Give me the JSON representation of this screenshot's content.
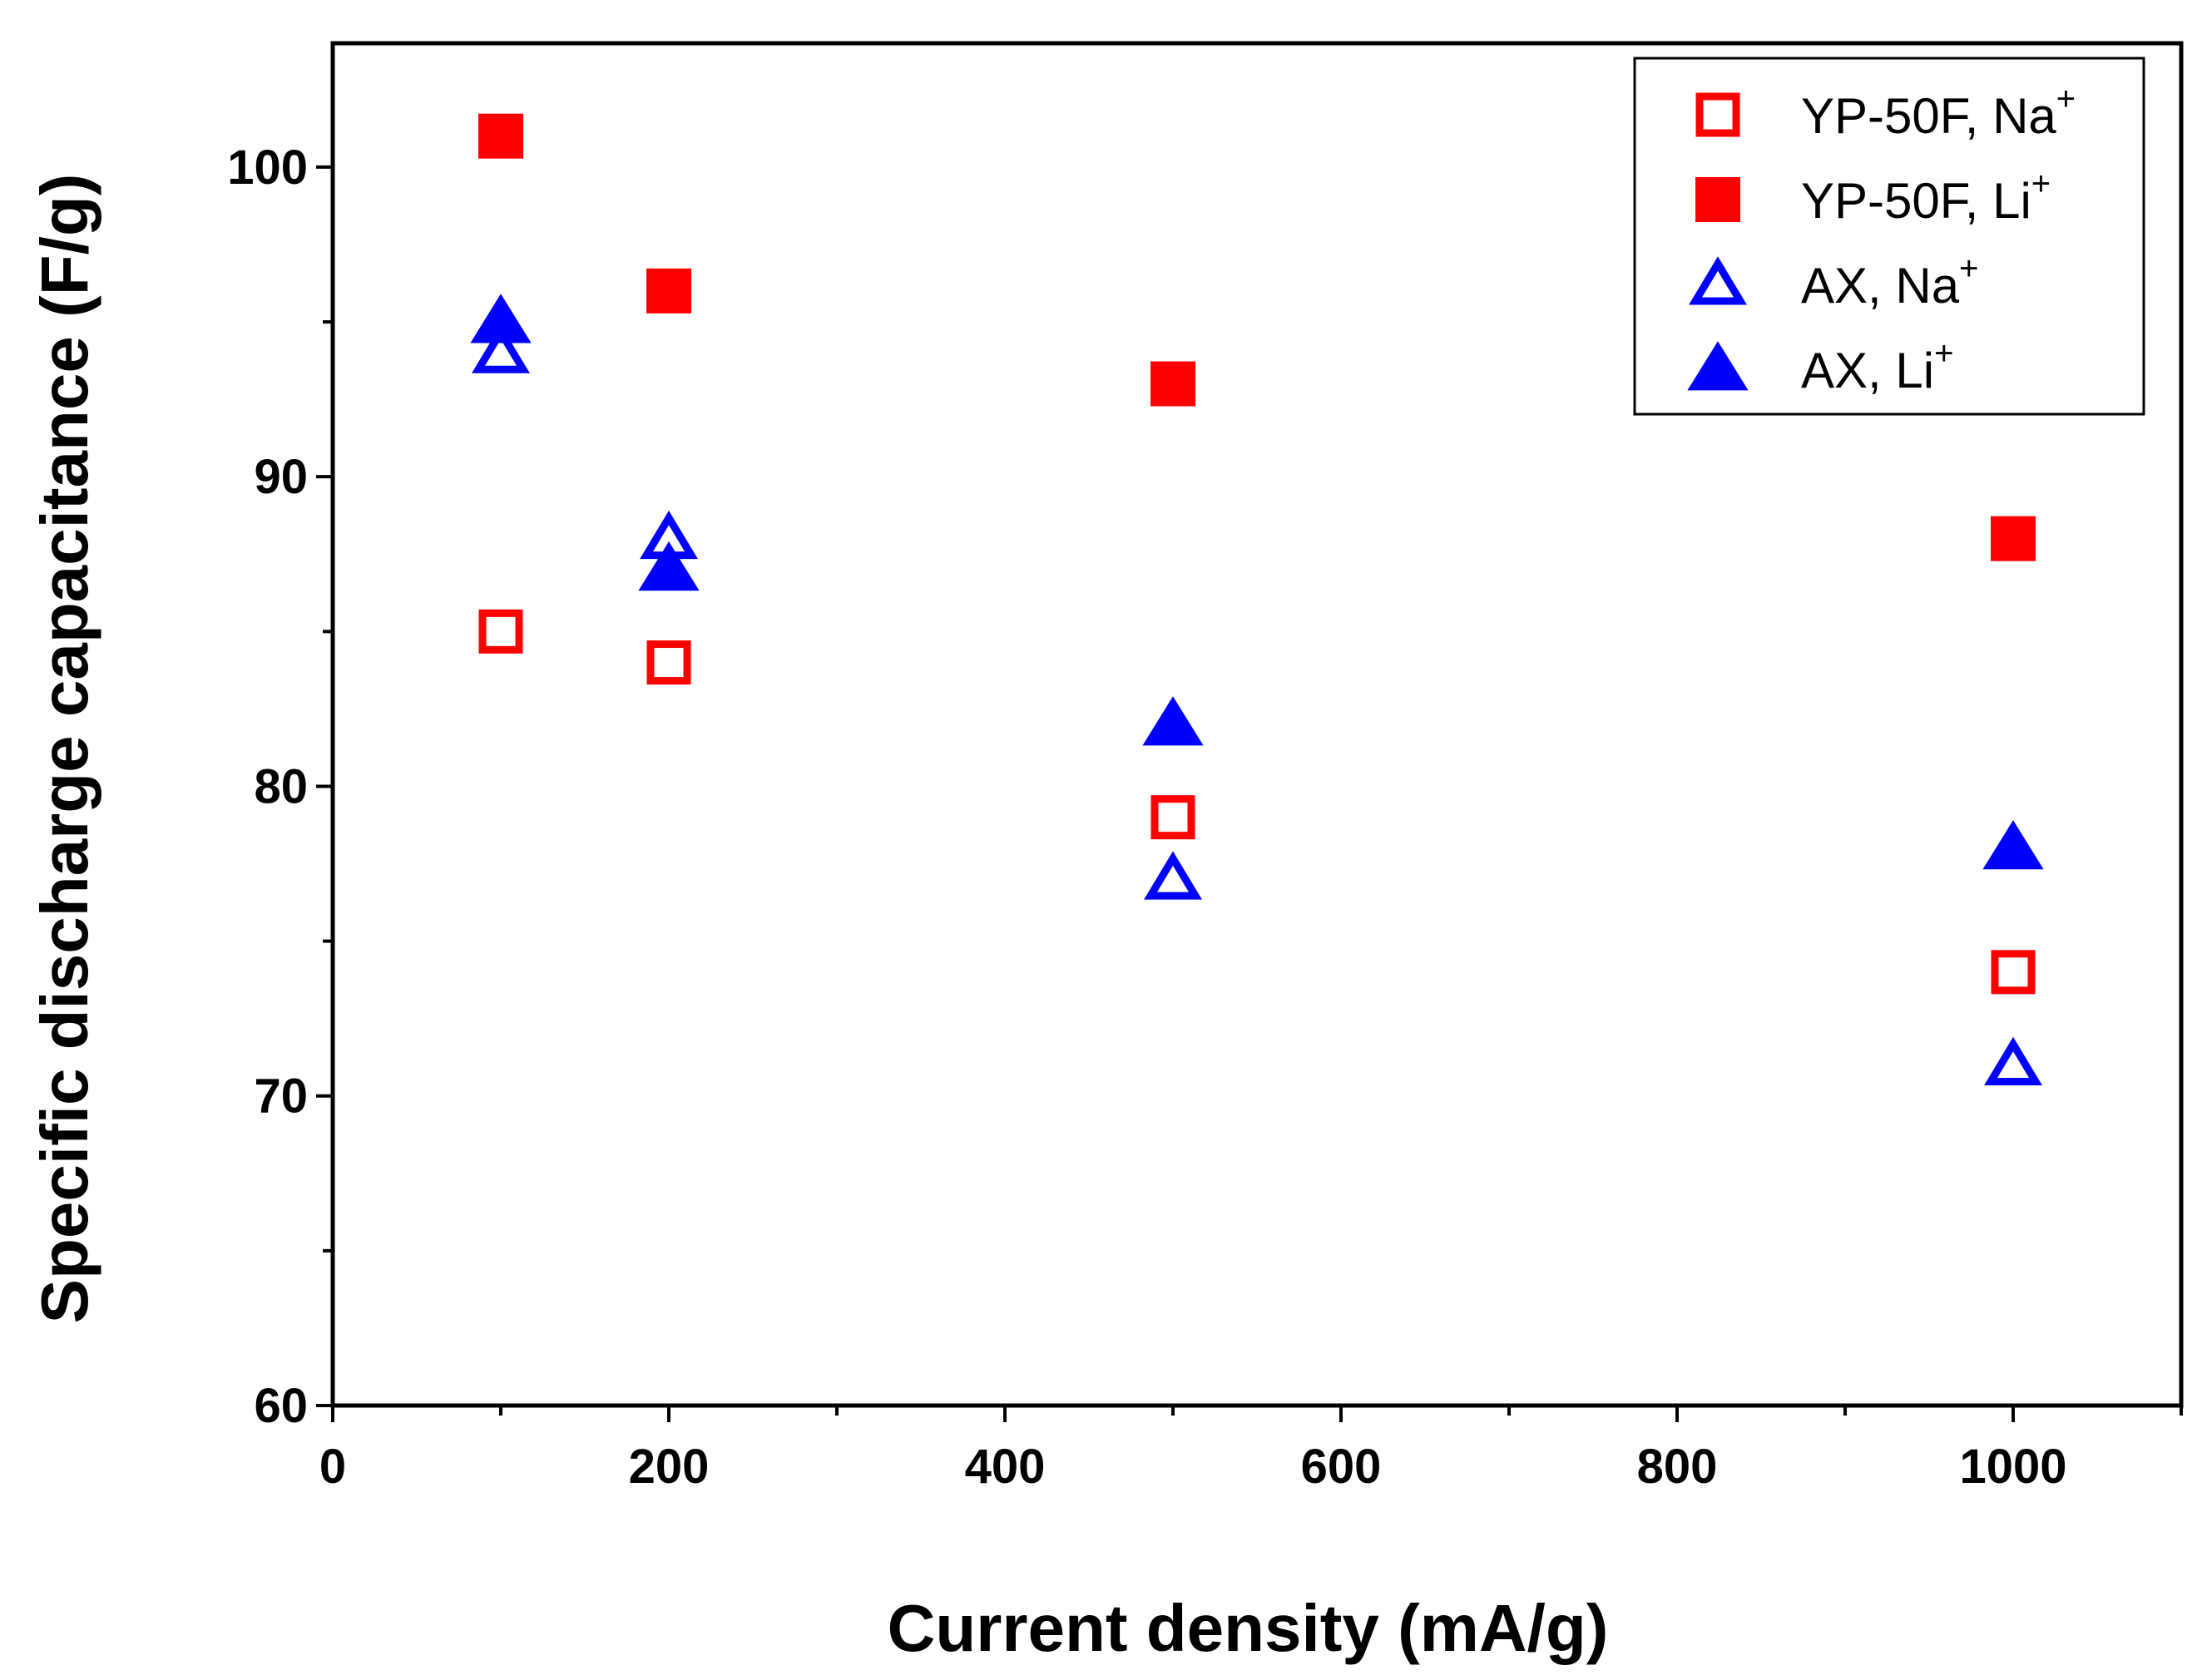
{
  "chart_data": {
    "type": "scatter",
    "title": "",
    "xlabel": "Current density (mA/g)",
    "ylabel": "Specific discharge capacitance (F/g)",
    "xlim": [
      0,
      1100
    ],
    "ylim": [
      60,
      104
    ],
    "xticks": [
      0,
      200,
      400,
      600,
      800,
      1000
    ],
    "yticks": [
      60,
      70,
      80,
      90,
      100
    ],
    "x_minor_step": 100,
    "y_minor_step": 5,
    "legend_position": "top-right",
    "series": [
      {
        "name": "YP-50F, Na",
        "name_base": "YP-50F, Na",
        "name_sup": "+",
        "marker": "square-open",
        "color": "#ff0000",
        "points": [
          [
            100,
            85
          ],
          [
            200,
            84
          ],
          [
            500,
            79
          ],
          [
            1000,
            74
          ]
        ]
      },
      {
        "name": "YP-50F, Li",
        "name_base": "YP-50F, Li",
        "name_sup": "+",
        "marker": "square-filled",
        "color": "#ff0000",
        "points": [
          [
            100,
            101
          ],
          [
            200,
            96
          ],
          [
            500,
            93
          ],
          [
            1000,
            88
          ]
        ]
      },
      {
        "name": "AX, Na",
        "name_base": "AX, Na",
        "name_sup": "+",
        "marker": "triangle-open",
        "color": "#0000ff",
        "points": [
          [
            100,
            94
          ],
          [
            200,
            88
          ],
          [
            500,
            77
          ],
          [
            1000,
            71
          ]
        ]
      },
      {
        "name": "AX, Li",
        "name_base": "AX, Li",
        "name_sup": "+",
        "marker": "triangle-filled",
        "color": "#0000ff",
        "points": [
          [
            100,
            95
          ],
          [
            200,
            87
          ],
          [
            500,
            82
          ],
          [
            1000,
            78
          ]
        ]
      }
    ]
  }
}
